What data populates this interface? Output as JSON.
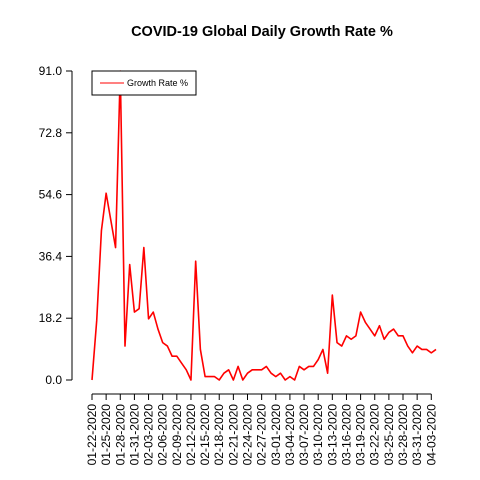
{
  "chart_data": {
    "type": "line",
    "title": "COVID-19 Global Daily Growth Rate %",
    "xlabel": "",
    "ylabel": "",
    "ylim": [
      0,
      91.0
    ],
    "y_ticks": [
      "0.0",
      "18.2",
      "36.4",
      "54.6",
      "72.8",
      "91.0"
    ],
    "y_tick_values": [
      0,
      18.2,
      36.4,
      54.6,
      72.8,
      91.0
    ],
    "x_tick_labels": [
      "01-22-2020",
      "01-25-2020",
      "01-28-2020",
      "01-31-2020",
      "02-03-2020",
      "02-06-2020",
      "02-09-2020",
      "02-12-2020",
      "02-15-2020",
      "02-18-2020",
      "02-21-2020",
      "02-24-2020",
      "02-27-2020",
      "03-01-2020",
      "03-04-2020",
      "03-07-2020",
      "03-10-2020",
      "03-13-2020",
      "03-16-2020",
      "03-19-2020",
      "03-22-2020",
      "03-25-2020",
      "03-28-2020",
      "03-31-2020",
      "04-03-2020"
    ],
    "legend_position": "top-left",
    "grid": false,
    "series": [
      {
        "name": "Growth Rate %",
        "color": "#ff0000",
        "x_start": "01-22-2020",
        "values": [
          0,
          17.5,
          44,
          55,
          47,
          39,
          91,
          10,
          34,
          20,
          21,
          39,
          18,
          20,
          15,
          11,
          10,
          7,
          7,
          5,
          3,
          0,
          35,
          9,
          1,
          1,
          1,
          0,
          2,
          3,
          0,
          4,
          0,
          2,
          3,
          3,
          3,
          4,
          2,
          1,
          2,
          0,
          1,
          0,
          4,
          3,
          4,
          4,
          6,
          9,
          2,
          25,
          11,
          10,
          13,
          12,
          13,
          20,
          17,
          15,
          13,
          16,
          12,
          14,
          15,
          13,
          13,
          10,
          8,
          10,
          9,
          9,
          8,
          9
        ]
      }
    ]
  }
}
